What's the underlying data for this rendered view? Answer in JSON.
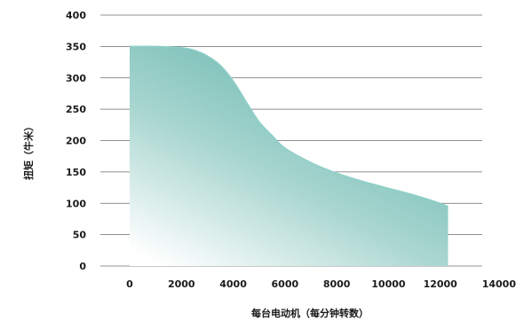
{
  "chart_data": {
    "type": "area",
    "xlabel": "每台电动机（每分钟转数）",
    "ylabel": "扭矩（牛米）",
    "xlim": [
      0,
      14000
    ],
    "ylim": [
      0,
      400
    ],
    "x_ticks": [
      0,
      2000,
      4000,
      6000,
      8000,
      10000,
      12000,
      14000
    ],
    "x_tick_labels": [
      "0",
      "2000",
      "4000",
      "6000",
      "8000",
      "10000",
      "12000",
      "14000"
    ],
    "y_ticks": [
      0,
      50,
      100,
      150,
      200,
      250,
      300,
      350,
      400
    ],
    "y_tick_labels": [
      "0",
      "50",
      "100",
      "150",
      "200",
      "250",
      "300",
      "350",
      "400"
    ],
    "grid": "horizontal",
    "legend": "none",
    "series": [
      {
        "x": [
          0,
          1000,
          2000,
          2500,
          3000,
          3500,
          4000,
          4500,
          5000,
          5500,
          6000,
          7000,
          8000,
          9000,
          10000,
          11000,
          12000,
          12300
        ],
        "values": [
          350,
          350,
          348,
          344,
          335,
          320,
          295,
          262,
          230,
          208,
          188,
          165,
          148,
          135,
          124,
          113,
          100,
          95
        ],
        "color_top": "#5fb3aa",
        "color_stroke": "#8fd0c8",
        "color_fade": "#ffffff"
      }
    ]
  }
}
